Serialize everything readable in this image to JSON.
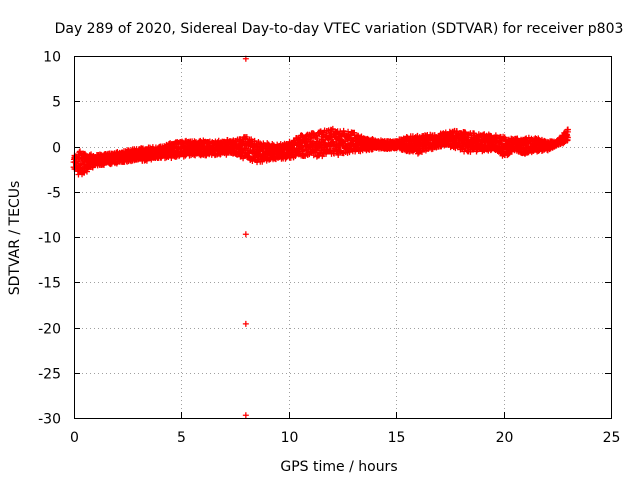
{
  "chart_data": {
    "type": "scatter",
    "title": "Day 289 of 2020, Sidereal Day-to-day VTEC variation (SDTVAR) for receiver p803",
    "xlabel": "GPS time / hours",
    "ylabel": "SDTVAR / TECUs",
    "xlim": [
      0,
      25
    ],
    "ylim": [
      -30,
      10
    ],
    "xticks": [
      "0",
      "5",
      "10",
      "15",
      "20",
      "25"
    ],
    "yticks": [
      "10",
      "5",
      "0",
      "-5",
      "-10",
      "-15",
      "-20",
      "-25",
      "-30"
    ],
    "grid": true,
    "marker": "plus",
    "color": "#ff0000",
    "series": [
      {
        "name": "SDTVAR",
        "band": {
          "x": [
            0.0,
            0.3,
            0.6,
            1.0,
            1.5,
            2.0,
            2.5,
            3.0,
            3.5,
            4.0,
            4.5,
            5.0,
            5.5,
            6.0,
            6.5,
            7.0,
            7.5,
            8.0,
            8.5,
            9.0,
            9.5,
            10.0,
            10.5,
            11.0,
            11.5,
            12.0,
            12.5,
            13.0,
            13.5,
            14.0,
            14.5,
            15.0,
            15.5,
            16.0,
            16.5,
            17.0,
            17.5,
            18.0,
            18.5,
            19.0,
            19.5,
            20.0,
            20.5,
            21.0,
            21.5,
            22.0,
            22.5,
            23.0
          ],
          "upper": [
            -0.8,
            -0.5,
            -0.8,
            -0.9,
            -0.8,
            -0.6,
            -0.4,
            -0.2,
            -0.1,
            0.0,
            0.4,
            0.6,
            0.7,
            0.7,
            0.6,
            0.7,
            0.8,
            1.1,
            0.6,
            0.4,
            0.2,
            0.5,
            1.2,
            1.5,
            1.7,
            2.0,
            1.8,
            1.6,
            1.0,
            0.8,
            0.6,
            0.6,
            1.2,
            1.2,
            1.3,
            1.4,
            1.7,
            1.8,
            1.5,
            1.4,
            1.3,
            1.1,
            0.9,
            1.0,
            1.0,
            0.6,
            0.6,
            2.0
          ],
          "lower": [
            -2.5,
            -3.4,
            -2.8,
            -2.2,
            -2.0,
            -1.9,
            -1.7,
            -1.6,
            -1.6,
            -1.3,
            -1.3,
            -1.2,
            -1.0,
            -1.1,
            -1.0,
            -0.9,
            -1.0,
            -1.4,
            -1.8,
            -1.6,
            -1.5,
            -1.3,
            -1.1,
            -1.0,
            -1.2,
            -1.0,
            -0.9,
            -0.6,
            -0.5,
            -0.3,
            -0.3,
            -0.2,
            -0.6,
            -0.8,
            -0.4,
            -0.2,
            -0.1,
            -0.5,
            -0.7,
            -0.6,
            -0.4,
            -1.2,
            -0.5,
            -0.9,
            -0.6,
            -0.5,
            0.1,
            0.5
          ]
        },
        "outliers": [
          {
            "x": 8.0,
            "y": 9.7
          },
          {
            "x": 8.0,
            "y": -9.7
          },
          {
            "x": 8.0,
            "y": -19.6
          },
          {
            "x": 8.0,
            "y": -29.7
          }
        ]
      }
    ]
  }
}
